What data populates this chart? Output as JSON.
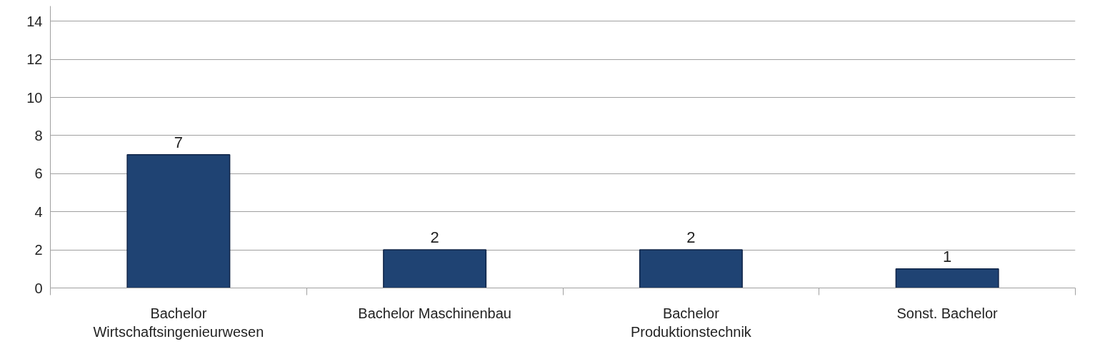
{
  "chart_data": {
    "type": "bar",
    "categories": [
      "Bachelor Wirtschaftsingenieurwesen",
      "Bachelor Maschinenbau",
      "Bachelor Produktionstechnik",
      "Sonst. Bachelor"
    ],
    "values": [
      7,
      2,
      2,
      1
    ],
    "color": "#1f4373",
    "ylim": [
      0,
      14.8
    ],
    "yticks": [
      0,
      2,
      4,
      6,
      8,
      10,
      12,
      14
    ],
    "grid": "y",
    "data_labels": true
  }
}
